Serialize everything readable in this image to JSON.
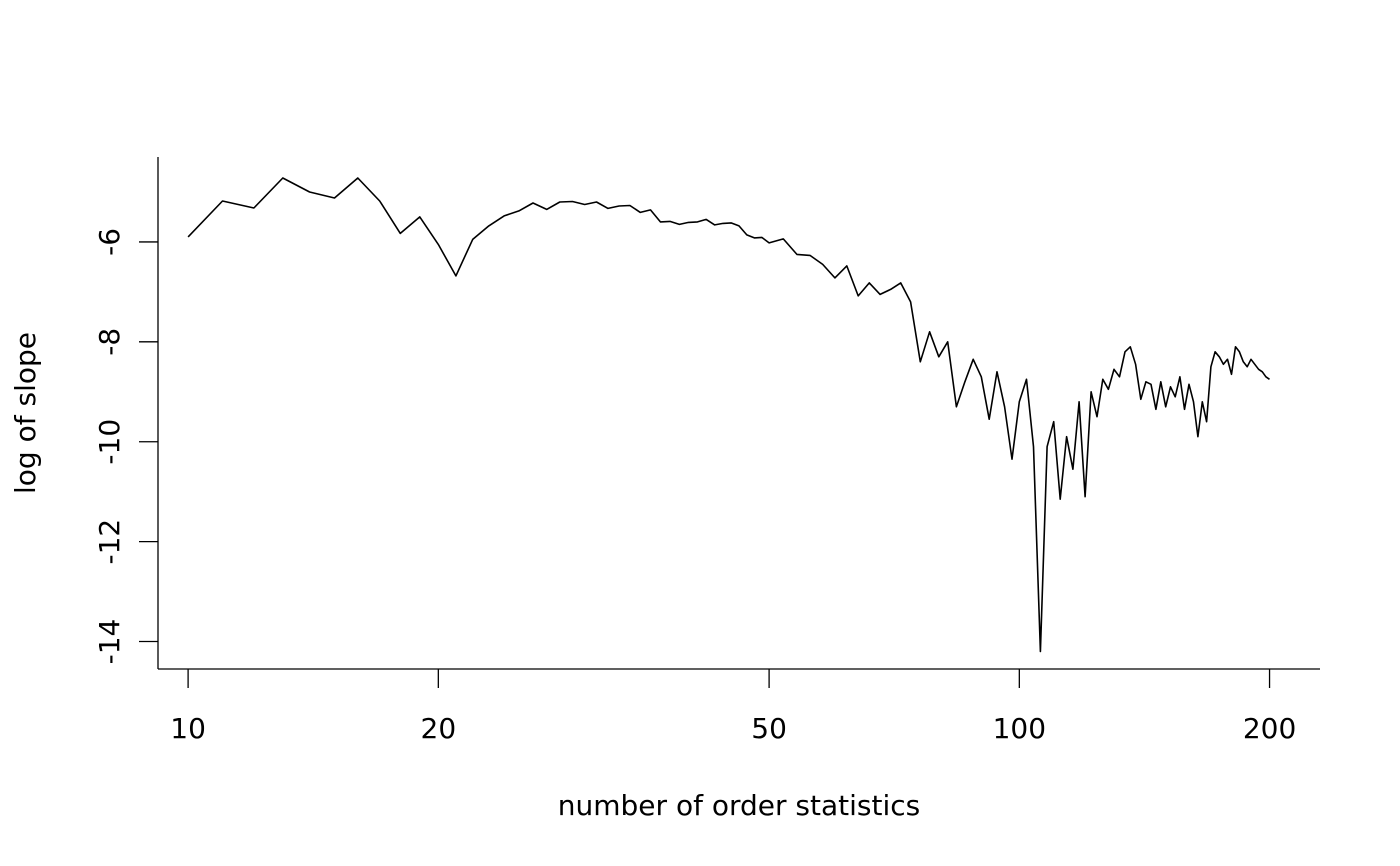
{
  "chart_data": {
    "type": "line",
    "title": "",
    "xlabel": "number of order statistics",
    "ylabel": "log of slope",
    "x_scale": "log",
    "xlim": [
      9.2,
      230
    ],
    "ylim": [
      -14.55,
      -4.3
    ],
    "x_ticks": [
      10,
      20,
      50,
      100,
      200
    ],
    "x_tick_labels": [
      "10",
      "20",
      "50",
      "100",
      "200"
    ],
    "y_ticks": [
      -6,
      -8,
      -10,
      -12,
      -14
    ],
    "y_tick_labels": [
      "-6",
      "-8",
      "-10",
      "-12",
      "-14"
    ],
    "grid": false,
    "legend": "none",
    "series": [
      {
        "x": [
          10,
          11,
          12,
          13,
          14,
          15,
          16,
          17,
          18,
          19,
          20,
          21,
          22,
          23,
          24,
          25,
          26,
          27,
          28,
          29,
          30,
          31,
          32,
          33,
          34,
          35,
          36,
          37,
          38,
          39,
          40,
          41,
          42,
          43,
          44,
          45,
          46,
          47,
          48,
          49,
          50,
          52,
          54,
          56,
          58,
          60,
          62,
          64,
          66,
          68,
          70,
          72,
          74,
          76,
          78,
          80,
          82,
          84,
          86,
          88,
          90,
          92,
          94,
          96,
          98,
          100,
          102,
          104,
          106,
          108,
          110,
          112,
          114,
          116,
          118,
          120,
          122,
          124,
          126,
          128,
          130,
          132,
          134,
          136,
          138,
          140,
          142,
          144,
          146,
          148,
          150,
          152,
          154,
          156,
          158,
          160,
          162,
          164,
          166,
          168,
          170,
          172,
          174,
          176,
          178,
          180,
          182,
          184,
          186,
          188,
          190,
          192,
          194,
          196,
          198,
          200
        ],
        "y": [
          -5.9,
          -5.18,
          -5.32,
          -4.72,
          -5.0,
          -5.12,
          -4.72,
          -5.18,
          -5.83,
          -5.5,
          -6.05,
          -6.68,
          -5.95,
          -5.68,
          -5.48,
          -5.38,
          -5.22,
          -5.35,
          -5.2,
          -5.19,
          -5.25,
          -5.2,
          -5.33,
          -5.28,
          -5.27,
          -5.41,
          -5.36,
          -5.6,
          -5.59,
          -5.65,
          -5.61,
          -5.6,
          -5.55,
          -5.66,
          -5.63,
          -5.62,
          -5.68,
          -5.86,
          -5.92,
          -5.91,
          -6.02,
          -5.94,
          -6.25,
          -6.27,
          -6.45,
          -6.72,
          -6.48,
          -7.08,
          -6.82,
          -7.05,
          -6.95,
          -6.82,
          -7.2,
          -8.4,
          -7.8,
          -8.3,
          -8.0,
          -9.3,
          -8.8,
          -8.35,
          -8.7,
          -9.55,
          -8.6,
          -9.3,
          -10.35,
          -9.2,
          -8.75,
          -10.1,
          -14.2,
          -10.1,
          -9.6,
          -11.15,
          -9.9,
          -10.55,
          -9.2,
          -11.1,
          -9.0,
          -9.5,
          -8.75,
          -8.95,
          -8.55,
          -8.7,
          -8.2,
          -8.1,
          -8.45,
          -9.15,
          -8.8,
          -8.85,
          -9.35,
          -8.8,
          -9.3,
          -8.9,
          -9.1,
          -8.7,
          -9.35,
          -8.85,
          -9.2,
          -9.9,
          -9.2,
          -9.6,
          -8.5,
          -8.2,
          -8.3,
          -8.45,
          -8.35,
          -8.65,
          -8.1,
          -8.2,
          -8.4,
          -8.5,
          -8.35,
          -8.45,
          -8.55,
          -8.6,
          -8.7,
          -8.75
        ]
      }
    ]
  }
}
